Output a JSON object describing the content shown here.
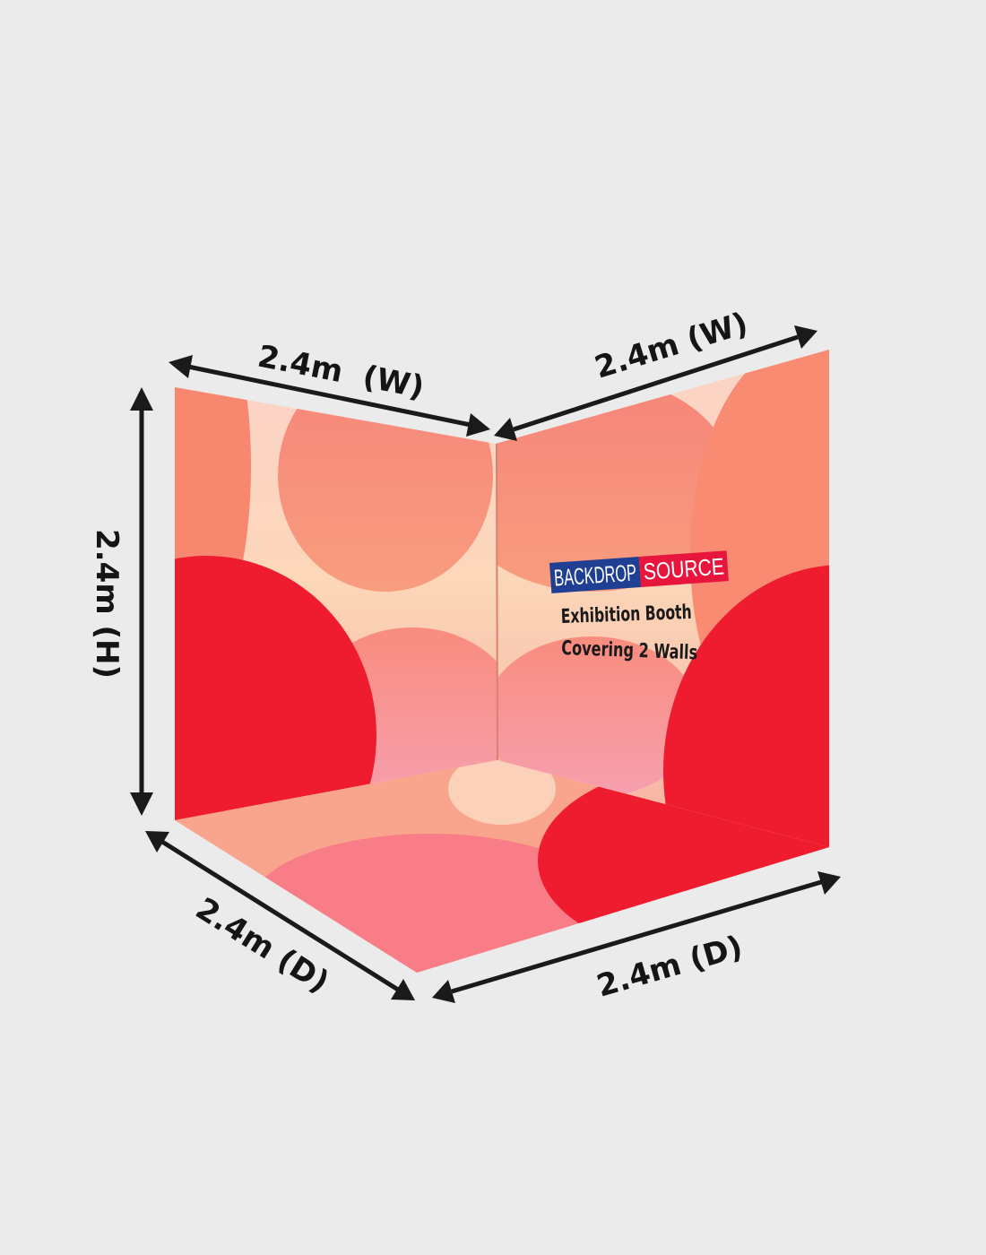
{
  "dimensions": {
    "height": "2.4m (H)",
    "width_left": "2.4m  (W)",
    "width_right": "2.4m (W)",
    "depth_left": "2.4m (D)",
    "depth_right": "2.4m (D)"
  },
  "logo": {
    "part1": "BACKDROP",
    "part2": "SOURCE"
  },
  "caption": {
    "line1": "Exhibition Booth",
    "line2": "Covering 2 Walls"
  },
  "colors": {
    "background": "#ebebeb",
    "logo_blue": "#1f3f93",
    "logo_red": "#e8163c",
    "accent_red": "#ee1c2e",
    "coral": "#f8836f"
  }
}
